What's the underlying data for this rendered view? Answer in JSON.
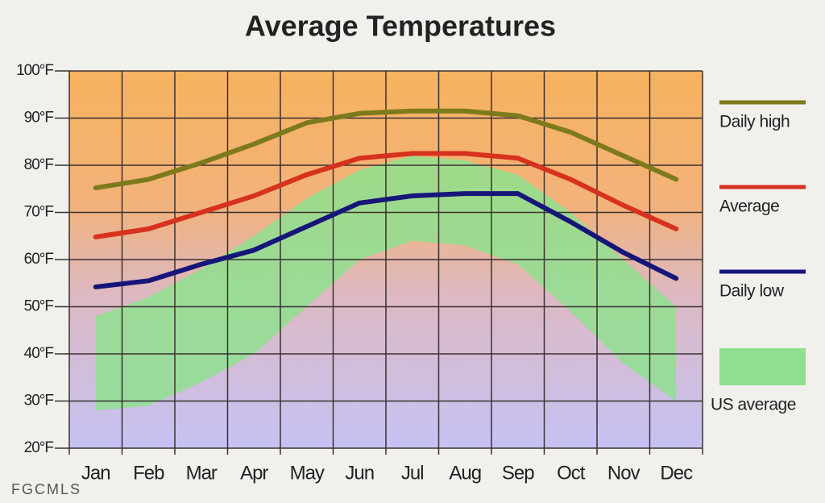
{
  "chart_data": {
    "type": "line",
    "title": "Average Temperatures",
    "categories": [
      "Jan",
      "Feb",
      "Mar",
      "Apr",
      "May",
      "Jun",
      "Jul",
      "Aug",
      "Sep",
      "Oct",
      "Nov",
      "Dec"
    ],
    "series": [
      {
        "name": "Daily high",
        "color": "#7d7a1c",
        "values": [
          75.2,
          77,
          80.5,
          84.5,
          89,
          91,
          91.5,
          91.5,
          90.5,
          87,
          82,
          77
        ]
      },
      {
        "name": "Average",
        "color": "#d6321e",
        "values": [
          64.8,
          66.5,
          70,
          73.5,
          78,
          81.5,
          82.5,
          82.5,
          81.5,
          77,
          71.5,
          66.5
        ]
      },
      {
        "name": "Daily low",
        "color": "#16167a",
        "values": [
          54.2,
          55.5,
          59,
          62,
          67,
          72,
          73.5,
          74,
          74,
          68,
          61.5,
          56
        ]
      }
    ],
    "band": {
      "name": "US average",
      "color": "#8fe08f",
      "high": [
        48,
        52,
        58,
        65,
        73,
        79,
        82,
        81,
        78,
        70,
        60,
        50
      ],
      "low": [
        28,
        29,
        34,
        40,
        50,
        60,
        64,
        63,
        59,
        49,
        38,
        30
      ]
    },
    "ylim": [
      20,
      100
    ],
    "yticks": [
      {
        "value": 20,
        "label": "20°F"
      },
      {
        "value": 30,
        "label": "30°F"
      },
      {
        "value": 40,
        "label": "40°F"
      },
      {
        "value": 50,
        "label": "50°F"
      },
      {
        "value": 60,
        "label": "60°F"
      },
      {
        "value": 70,
        "label": "70°F"
      },
      {
        "value": 80,
        "label": "80°F"
      },
      {
        "value": 90,
        "label": "90°F"
      },
      {
        "value": 100,
        "label": "100°F"
      }
    ],
    "grid": true,
    "legend": "right",
    "source": "FGCMLS"
  }
}
